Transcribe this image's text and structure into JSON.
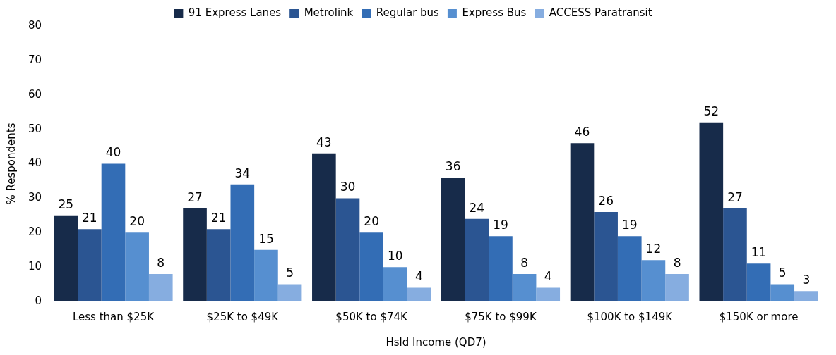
{
  "chart_data": {
    "type": "bar",
    "xlabel": "Hsld Income (QD7)",
    "ylabel": "% Respondents",
    "categories": [
      "Less than $25K",
      "$25K to $49K",
      "$50K to $74K",
      "$75K to $99K",
      "$100K to $149K",
      "$150K or more"
    ],
    "series": [
      {
        "name": "91 Express Lanes",
        "color": "#172b4a",
        "values": [
          25,
          27,
          43,
          36,
          46,
          52
        ]
      },
      {
        "name": "Metrolink",
        "color": "#2b5592",
        "values": [
          21,
          21,
          30,
          24,
          26,
          27
        ]
      },
      {
        "name": "Regular bus",
        "color": "#336db5",
        "values": [
          40,
          34,
          20,
          19,
          19,
          11
        ]
      },
      {
        "name": "Express Bus",
        "color": "#568fd0",
        "values": [
          20,
          15,
          10,
          8,
          12,
          5
        ]
      },
      {
        "name": "ACCESS Paratransit",
        "color": "#86ade0",
        "values": [
          8,
          5,
          4,
          4,
          8,
          3
        ]
      }
    ],
    "ylim": [
      0,
      80
    ],
    "yticks": [
      0,
      10,
      20,
      30,
      40,
      50,
      60,
      70,
      80
    ],
    "grid": false,
    "legend": "top",
    "data_labels": true
  }
}
